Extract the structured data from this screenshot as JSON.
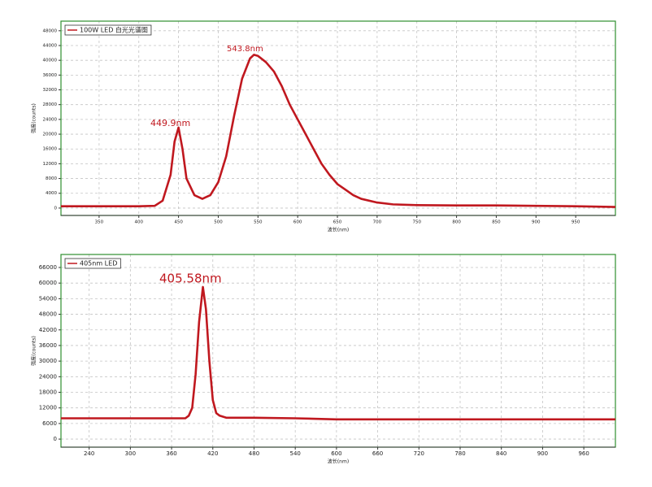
{
  "chart_data": [
    {
      "type": "line",
      "legend": "top-left",
      "grid": true,
      "x_label": "波长(nm)",
      "y_label": "强度(counts)",
      "annotations": [
        "449.9nm",
        "543.8nm"
      ],
      "xlim": [
        302,
        1000
      ],
      "ylim": [
        -2000,
        50600
      ],
      "xticks": [
        350,
        400,
        450,
        500,
        550,
        600,
        650,
        700,
        750,
        800,
        850,
        900,
        950
      ],
      "yticks": [
        0,
        4000,
        8000,
        12000,
        16000,
        20000,
        24000,
        28000,
        32000,
        36000,
        40000,
        44000,
        48000
      ],
      "x": [
        302,
        350,
        400,
        420,
        430,
        440,
        445,
        450,
        455,
        460,
        470,
        480,
        490,
        500,
        510,
        520,
        530,
        540,
        545,
        550,
        560,
        570,
        580,
        590,
        600,
        610,
        620,
        630,
        640,
        650,
        660,
        670,
        680,
        700,
        720,
        750,
        800,
        850,
        900,
        950,
        1000
      ],
      "series": [
        {
          "name": "100W LED 白光光谱图",
          "color": "#c0181f",
          "values": [
            500,
            500,
            500,
            600,
            2000,
            9000,
            18000,
            21800,
            16000,
            8000,
            3500,
            2500,
            3500,
            7000,
            14000,
            25000,
            35000,
            40500,
            41500,
            41200,
            39500,
            37000,
            33000,
            28000,
            24000,
            20000,
            16000,
            12000,
            9000,
            6500,
            5000,
            3500,
            2500,
            1500,
            1000,
            800,
            700,
            700,
            600,
            500,
            300
          ]
        }
      ]
    },
    {
      "type": "line",
      "legend": "top-left",
      "grid": true,
      "x_label": "波长(nm)",
      "y_label": "强度(counts)",
      "annotations": [
        "405.58nm"
      ],
      "xlim": [
        199,
        1006
      ],
      "ylim": [
        -3100,
        71000
      ],
      "xticks": [
        240,
        300,
        360,
        420,
        480,
        540,
        600,
        660,
        720,
        780,
        840,
        900,
        960
      ],
      "yticks": [
        0,
        6000,
        12000,
        18000,
        24000,
        30000,
        36000,
        42000,
        48000,
        54000,
        60000,
        66000
      ],
      "x": [
        199,
        300,
        380,
        385,
        390,
        395,
        400,
        405.58,
        410,
        415,
        420,
        425,
        430,
        440,
        480,
        540,
        600,
        700,
        800,
        900,
        1006
      ],
      "series": [
        {
          "name": "405nm LED",
          "color": "#c0181f",
          "values": [
            8000,
            8000,
            8000,
            9000,
            12000,
            25000,
            45000,
            58500,
            50000,
            30000,
            15000,
            10000,
            9000,
            8200,
            8200,
            8000,
            7600,
            7600,
            7600,
            7600,
            7600
          ]
        }
      ]
    }
  ]
}
